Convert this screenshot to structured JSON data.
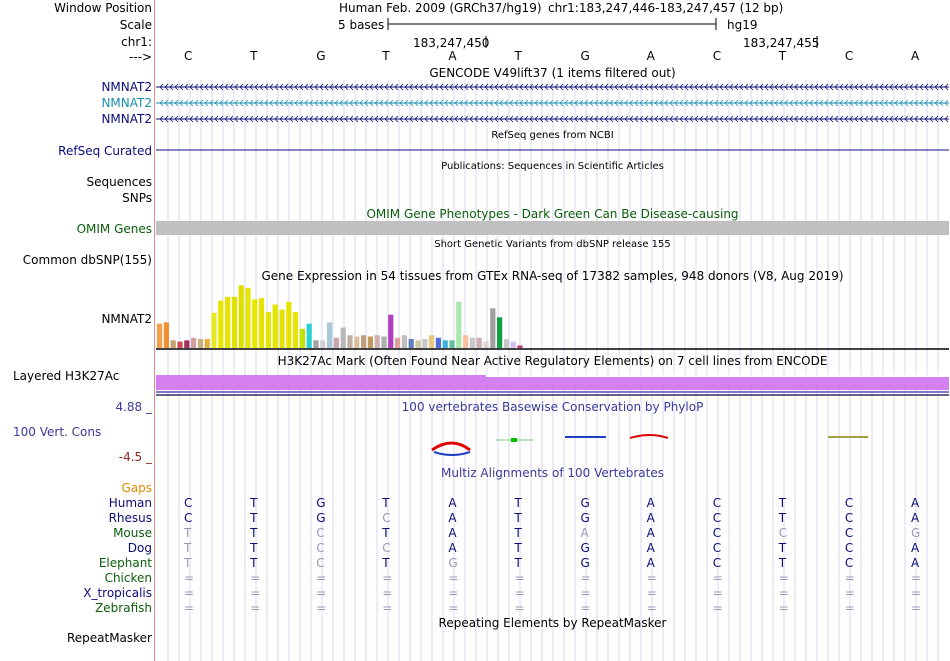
{
  "labels": {
    "window_position": "Window Position",
    "scale": "Scale",
    "chrom": "chr1:",
    "arrow": "--->"
  },
  "header": {
    "assembly": "Human Feb. 2009 (GRCh37/hg19)",
    "position": "chr1:183,247,446-183,247,457 (12 bp)",
    "scale_text": "5 bases",
    "db": "hg19",
    "coord1": "183,247,450",
    "coord2": "183,247,455"
  },
  "sequence": [
    "C",
    "T",
    "G",
    "T",
    "A",
    "T",
    "G",
    "A",
    "C",
    "T",
    "C",
    "A"
  ],
  "gencode": {
    "title": "GENCODE V49lift37 (1 items filtered out)",
    "tracks": [
      {
        "name": "NMNAT2",
        "color": "#0c0c78"
      },
      {
        "name": "NMNAT2",
        "color": "#1a8fb0"
      },
      {
        "name": "NMNAT2",
        "color": "#0c0c78"
      }
    ]
  },
  "refseq": {
    "title": "RefSeq genes from NCBI",
    "label": "RefSeq Curated"
  },
  "publications": {
    "title": "Publications: Sequences in Scientific Articles",
    "label1": "Sequences",
    "label2": "SNPs"
  },
  "omim": {
    "title": "OMIM Gene Phenotypes - Dark Green Can Be Disease-causing",
    "label": "OMIM Genes"
  },
  "dbsnp": {
    "title": "Short Genetic Variants from dbSNP release 155",
    "label": "Common dbSNP(155)"
  },
  "gtex": {
    "title": "Gene Expression in 54 tissues from GTEx RNA-seq of 17382 samples, 948 donors (V8, Aug 2019)",
    "label": "NMNAT2",
    "values": [
      0.38,
      0.4,
      0.12,
      0.1,
      0.12,
      0.16,
      0.14,
      0.14,
      0.55,
      0.74,
      0.8,
      0.8,
      0.98,
      0.94,
      0.76,
      0.78,
      0.56,
      0.68,
      0.6,
      0.72,
      0.56,
      0.3,
      0.38,
      0.12,
      0.12,
      0.4,
      0.16,
      0.32,
      0.2,
      0.18,
      0.2,
      0.18,
      0.2,
      0.18,
      0.52,
      0.16,
      0.2,
      0.14,
      0.12,
      0.14,
      0.2,
      0.16,
      0.12,
      0.12,
      0.72,
      0.2,
      0.16,
      0.16,
      0.1,
      0.62,
      0.48,
      0.14,
      0.1,
      0.04
    ],
    "colors": [
      "#f6a04a",
      "#f09030",
      "#c6a070",
      "#cc4a4a",
      "#a03060",
      "#d0a0a0",
      "#c8b080",
      "#e0b040",
      "#e8e820",
      "#e6e600",
      "#e4e400",
      "#e2e200",
      "#e0e000",
      "#e6e600",
      "#e6e600",
      "#e4e400",
      "#e4e400",
      "#e6e600",
      "#e2e200",
      "#e4e400",
      "#e6e600",
      "#bfe600",
      "#2ad1d1",
      "#a0a0a0",
      "#d0d0d0",
      "#a8c8d8",
      "#c8a8a8",
      "#b8b8b8",
      "#c0b0a0",
      "#d8c0a0",
      "#c0a080",
      "#c09860",
      "#d0b0b0",
      "#b0b0b0",
      "#b040c0",
      "#e0a0a0",
      "#c0c0c0",
      "#6080c0",
      "#d0c8a0",
      "#c8c8c8",
      "#e8c880",
      "#5070e0",
      "#40b0e0",
      "#60c0a0",
      "#a8e8a8",
      "#f8c0a0",
      "#c8c8c8",
      "#d0b0b0",
      "#e0d0d0",
      "#a0a0a0",
      "#10a040",
      "#c8c8c8",
      "#d0c0f0",
      "#c04080"
    ]
  },
  "h3k27ac": {
    "title": "H3K27Ac Mark (Often Found Near Active Regulatory Elements) on 7 cell lines from ENCODE",
    "label": "Layered H3K27Ac"
  },
  "phylop": {
    "title": "100 vertebrates Basewise Conservation by PhyloP",
    "label": "100 Vert. Cons",
    "max": "4.88 _",
    "min": "-4.5 _"
  },
  "multiz": {
    "title": "Multiz Alignments of 100 Vertebrates",
    "gaps_label": "Gaps",
    "species": [
      {
        "name": "Human",
        "seq": [
          "C",
          "T",
          "G",
          "T",
          "A",
          "T",
          "G",
          "A",
          "C",
          "T",
          "C",
          "A"
        ],
        "conserved": [
          1,
          1,
          1,
          1,
          1,
          1,
          1,
          1,
          1,
          1,
          1,
          1
        ]
      },
      {
        "name": "Rhesus",
        "seq": [
          "C",
          "T",
          "G",
          "C",
          "A",
          "T",
          "G",
          "A",
          "C",
          "T",
          "C",
          "A"
        ],
        "conserved": [
          1,
          1,
          1,
          0,
          1,
          1,
          1,
          1,
          1,
          1,
          1,
          1
        ]
      },
      {
        "name": "Mouse",
        "seq": [
          "T",
          "T",
          "C",
          "T",
          "A",
          "T",
          "A",
          "A",
          "C",
          "C",
          "C",
          "G"
        ],
        "conserved": [
          0,
          1,
          0,
          1,
          1,
          1,
          0,
          1,
          1,
          0,
          1,
          0
        ]
      },
      {
        "name": "Dog",
        "seq": [
          "T",
          "T",
          "C",
          "C",
          "A",
          "T",
          "G",
          "A",
          "C",
          "T",
          "C",
          "A"
        ],
        "conserved": [
          0,
          1,
          0,
          0,
          1,
          1,
          1,
          1,
          1,
          1,
          1,
          1
        ]
      },
      {
        "name": "Elephant",
        "seq": [
          "T",
          "T",
          "C",
          "T",
          "G",
          "T",
          "G",
          "A",
          "C",
          "T",
          "C",
          "A"
        ],
        "conserved": [
          0,
          1,
          0,
          1,
          0,
          1,
          1,
          1,
          1,
          1,
          1,
          1
        ]
      },
      {
        "name": "Chicken",
        "seq": [
          "=",
          "=",
          "=",
          "=",
          "=",
          "=",
          "=",
          "=",
          "=",
          "=",
          "=",
          "="
        ],
        "conserved": [
          0,
          0,
          0,
          0,
          0,
          0,
          0,
          0,
          0,
          0,
          0,
          0
        ]
      },
      {
        "name": "X_tropicalis",
        "seq": [
          "=",
          "=",
          "=",
          "=",
          "=",
          "=",
          "=",
          "=",
          "=",
          "=",
          "=",
          "="
        ],
        "conserved": [
          0,
          0,
          0,
          0,
          0,
          0,
          0,
          0,
          0,
          0,
          0,
          0
        ]
      },
      {
        "name": "Zebrafish",
        "seq": [
          "=",
          "=",
          "=",
          "=",
          "=",
          "=",
          "=",
          "=",
          "=",
          "=",
          "=",
          "="
        ],
        "conserved": [
          0,
          0,
          0,
          0,
          0,
          0,
          0,
          0,
          0,
          0,
          0,
          0
        ]
      }
    ]
  },
  "repeatmasker": {
    "title": "Repeating Elements by RepeatMasker",
    "label": "RepeatMasker"
  },
  "colors": {
    "navy": "#0c0c78",
    "green": "#0b5d0b",
    "omim_bar": "#c0c0c0",
    "h3k27ac": "#d580f0",
    "grid": "#d8d8f0"
  }
}
